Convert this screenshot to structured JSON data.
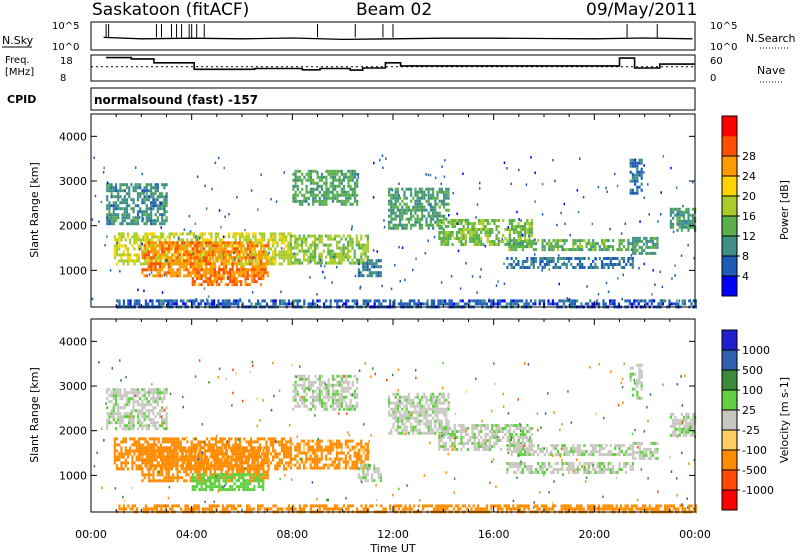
{
  "header": {
    "station": "Saskatoon (fitACF)",
    "beam": "Beam 02",
    "date": "09/May/2011"
  },
  "scan_panels": {
    "nsky_label": "N.Sky",
    "nsearch_label": "N.Search",
    "count_ticks": [
      "10^5",
      "10^0"
    ],
    "freq_label": [
      "Freq.",
      "[MHz]"
    ],
    "freq_ticks": [
      "18",
      "8"
    ],
    "nave_label": "Nave",
    "nave_ticks": [
      "60",
      "0"
    ],
    "cpid_label": "CPID",
    "cpid_value": "normalsound (fast) -157"
  },
  "colors": {
    "power_scale": [
      "#0000ff",
      "#1e5cb8",
      "#3f8f86",
      "#5ab04a",
      "#a8cc2a",
      "#ffd400",
      "#ff9a00",
      "#ff5000",
      "#ff0000"
    ],
    "velocity_scale": [
      "#1f1fd0",
      "#3060b0",
      "#3c8a3c",
      "#60d040",
      "#c8c8c0",
      "#ffcc66",
      "#ff8c00",
      "#ff4a00",
      "#ff0000"
    ]
  },
  "chart_data": [
    {
      "type": "line",
      "name": "scan-parameters",
      "x_unit": "hours UT",
      "xlim": [
        0,
        24
      ],
      "series": [
        {
          "panel": "counts",
          "values": [
            [
              0.5,
              0.55
            ],
            [
              2,
              0.6
            ],
            [
              4,
              0.58
            ],
            [
              6,
              0.6
            ],
            [
              8,
              0.57
            ],
            [
              10,
              0.62
            ],
            [
              12,
              0.6
            ],
            [
              14,
              0.58
            ],
            [
              16,
              0.58
            ],
            [
              18,
              0.59
            ],
            [
              20,
              0.6
            ],
            [
              22,
              0.57
            ],
            [
              23.9,
              0.6
            ]
          ]
        },
        {
          "panel": "frequency",
          "unit": "MHz",
          "ylim": [
            8,
            18
          ],
          "values": [
            [
              0.6,
              17
            ],
            [
              1.6,
              16.5
            ],
            [
              2.5,
              15
            ],
            [
              4.1,
              12.5
            ],
            [
              6.5,
              12.8
            ],
            [
              8.4,
              12.3
            ],
            [
              9.1,
              12.8
            ],
            [
              10.3,
              12.2
            ],
            [
              10.8,
              13
            ],
            [
              11.7,
              15
            ],
            [
              12.3,
              13.8
            ],
            [
              21,
              16.8
            ],
            [
              21.6,
              13
            ],
            [
              22.6,
              14.5
            ],
            [
              24,
              14.5
            ]
          ]
        },
        {
          "panel": "nave",
          "ylim": [
            0,
            60
          ],
          "reference": 33
        }
      ]
    },
    {
      "type": "heatmap",
      "name": "power",
      "xlabel": "",
      "ylabel": "Slant Range [km]",
      "colorbar_label": "Power [dB]",
      "xlim": [
        0,
        24
      ],
      "ylim": [
        180,
        4500
      ],
      "xticks": [
        "00:00",
        "04:00",
        "08:00",
        "12:00",
        "16:00",
        "20:00",
        "00:00"
      ],
      "yticks": [
        1000,
        2000,
        3000,
        4000
      ],
      "colorbar_ticks": [
        "4",
        "8",
        "12",
        "16",
        "20",
        "24",
        "28"
      ],
      "bands": [
        {
          "x": [
            0.6,
            3.0
          ],
          "y": [
            2050,
            2950
          ],
          "value": 10
        },
        {
          "x": [
            0.9,
            7.9
          ],
          "y": [
            1150,
            1850
          ],
          "value": 19
        },
        {
          "x": [
            2.0,
            7.0
          ],
          "y": [
            850,
            1650
          ],
          "value": 27
        },
        {
          "x": [
            4.0,
            6.8
          ],
          "y": [
            680,
            1050
          ],
          "value": 28
        },
        {
          "x": [
            7.9,
            11.0
          ],
          "y": [
            1150,
            1800
          ],
          "value": 17
        },
        {
          "x": [
            8.0,
            10.6
          ],
          "y": [
            2450,
            3250
          ],
          "value": 13
        },
        {
          "x": [
            10.6,
            11.5
          ],
          "y": [
            850,
            1250
          ],
          "value": 9
        },
        {
          "x": [
            11.8,
            14.2
          ],
          "y": [
            1950,
            2850
          ],
          "value": 12
        },
        {
          "x": [
            13.8,
            17.5
          ],
          "y": [
            1550,
            2150
          ],
          "value": 15
        },
        {
          "x": [
            16.5,
            21.5
          ],
          "y": [
            1450,
            1700
          ],
          "value": 14
        },
        {
          "x": [
            16.5,
            21.5
          ],
          "y": [
            1050,
            1300
          ],
          "value": 8
        },
        {
          "x": [
            21.5,
            22.5
          ],
          "y": [
            1350,
            1750
          ],
          "value": 11
        },
        {
          "x": [
            21.4,
            21.9
          ],
          "y": [
            2750,
            3500
          ],
          "value": 8
        },
        {
          "x": [
            23.0,
            24.0
          ],
          "y": [
            1900,
            2400
          ],
          "value": 11
        },
        {
          "x": [
            1.0,
            24.0
          ],
          "y": [
            180,
            350
          ],
          "value": 6
        }
      ]
    },
    {
      "type": "heatmap",
      "name": "velocity",
      "xlabel": "Time UT",
      "ylabel": "Slant Range [km]",
      "colorbar_label": "Velocity [m s-1]",
      "xlim": [
        0,
        24
      ],
      "ylim": [
        180,
        4500
      ],
      "xticks": [
        "00:00",
        "04:00",
        "08:00",
        "12:00",
        "16:00",
        "20:00",
        "00:00"
      ],
      "yticks": [
        1000,
        2000,
        3000,
        4000
      ],
      "colorbar_ticks": [
        "1000",
        "500",
        "100",
        "25",
        "-25",
        "-100",
        "-500",
        "-1000"
      ],
      "bands": [
        {
          "x": [
            0.6,
            3.0
          ],
          "y": [
            2050,
            2950
          ],
          "value": 10
        },
        {
          "x": [
            0.9,
            7.9
          ],
          "y": [
            1150,
            1850
          ],
          "value": -200
        },
        {
          "x": [
            2.0,
            7.0
          ],
          "y": [
            850,
            1650
          ],
          "value": -150
        },
        {
          "x": [
            4.0,
            6.8
          ],
          "y": [
            680,
            1050
          ],
          "value": 60
        },
        {
          "x": [
            7.9,
            11.0
          ],
          "y": [
            1150,
            1800
          ],
          "value": -120
        },
        {
          "x": [
            8.0,
            10.6
          ],
          "y": [
            2450,
            3250
          ],
          "value": 10
        },
        {
          "x": [
            10.6,
            11.5
          ],
          "y": [
            850,
            1250
          ],
          "value": 10
        },
        {
          "x": [
            11.8,
            14.2
          ],
          "y": [
            1950,
            2850
          ],
          "value": 10
        },
        {
          "x": [
            13.8,
            17.5
          ],
          "y": [
            1550,
            2150
          ],
          "value": 10
        },
        {
          "x": [
            16.5,
            21.5
          ],
          "y": [
            1450,
            1700
          ],
          "value": 10
        },
        {
          "x": [
            16.5,
            21.5
          ],
          "y": [
            1050,
            1300
          ],
          "value": 10
        },
        {
          "x": [
            21.5,
            22.5
          ],
          "y": [
            1350,
            1750
          ],
          "value": 10
        },
        {
          "x": [
            21.4,
            21.9
          ],
          "y": [
            2750,
            3500
          ],
          "value": 10
        },
        {
          "x": [
            23.0,
            24.0
          ],
          "y": [
            1900,
            2400
          ],
          "value": 10
        },
        {
          "x": [
            1.0,
            24.0
          ],
          "y": [
            180,
            350
          ],
          "value": -300
        }
      ]
    }
  ]
}
